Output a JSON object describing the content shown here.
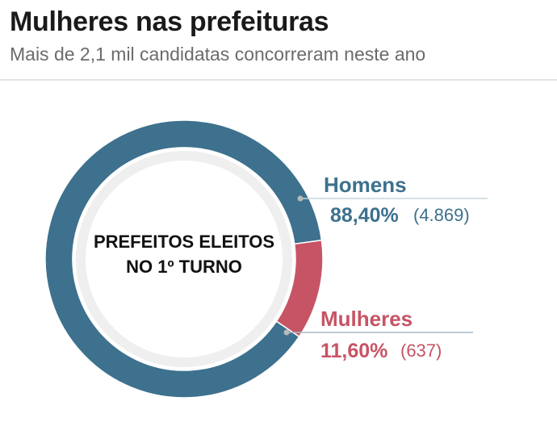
{
  "header": {
    "title": "Mulheres nas prefeituras",
    "subtitle": "Mais de 2,1 mil candidatas concorreram neste ano"
  },
  "colors": {
    "men": "#3d718e",
    "women": "#c65465",
    "inner_ring": "#efefef",
    "leader": "#c9d6de",
    "women_leader": "#a7bcc8",
    "dot": "#b9b9b9"
  },
  "chart_data": {
    "type": "pie",
    "title": "Mulheres nas prefeituras",
    "subtitle": "Mais de 2,1 mil candidatas concorreram neste ano",
    "center_label": [
      "PREFEITOS ELEITOS",
      "NO 1º TURNO"
    ],
    "slices": [
      {
        "name": "Homens",
        "percent": 88.4,
        "percent_label": "88,40%",
        "count": 4869,
        "count_label": "(4.869)"
      },
      {
        "name": "Mulheres",
        "percent": 11.6,
        "percent_label": "11,60%",
        "count": 637,
        "count_label": "(637)"
      }
    ],
    "legend": "right"
  }
}
